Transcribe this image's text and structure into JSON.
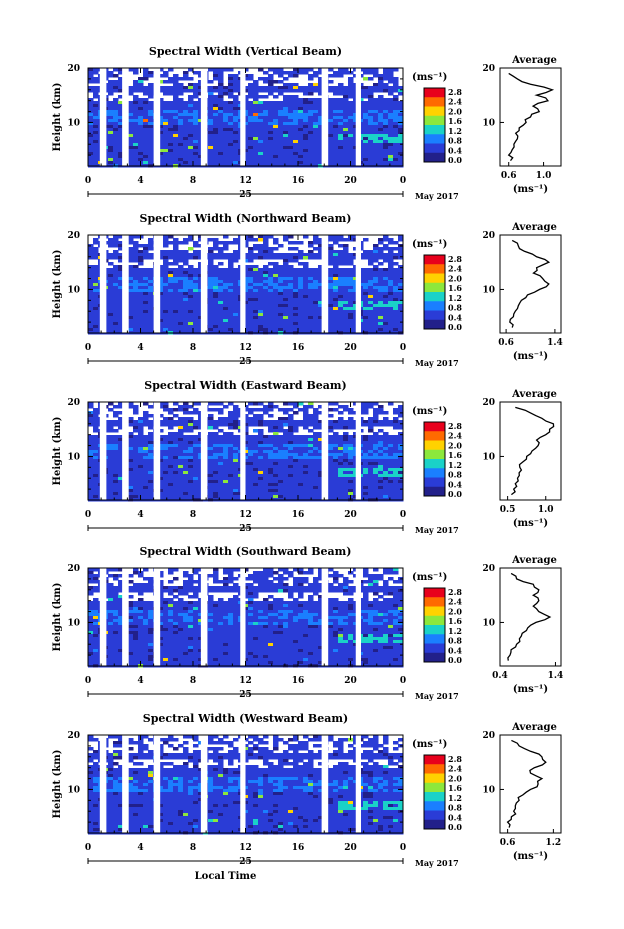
{
  "footer_label": "Local Time",
  "colorbar": {
    "unit_label": "(ms⁻¹)",
    "ticks": [
      "2.8",
      "2.4",
      "2.0",
      "1.6",
      "1.2",
      "0.8",
      "0.4",
      "0.0"
    ],
    "colors": [
      "#e8001c",
      "#ff6a00",
      "#ffd200",
      "#8ce83c",
      "#1ad2c8",
      "#1a7fff",
      "#2a3cd6",
      "#22208a"
    ]
  },
  "panels": [
    {
      "title": "Spectral Width (Vertical Beam)",
      "avg_ticks": [
        "0.6",
        "1.0"
      ],
      "avg_xlim": [
        0.5,
        1.2
      ]
    },
    {
      "title": "Spectral Width (Northward Beam)",
      "avg_ticks": [
        "0.6",
        "1.4"
      ],
      "avg_xlim": [
        0.5,
        1.5
      ]
    },
    {
      "title": "Spectral Width (Eastward Beam)",
      "avg_ticks": [
        "0.5",
        "1.0"
      ],
      "avg_xlim": [
        0.4,
        1.2
      ]
    },
    {
      "title": "Spectral Width (Southward Beam)",
      "avg_ticks": [
        "0.4",
        "1.4"
      ],
      "avg_xlim": [
        0.4,
        1.5
      ]
    },
    {
      "title": "Spectral Width (Westward Beam)",
      "avg_ticks": [
        "0.6",
        "1.2"
      ],
      "avg_xlim": [
        0.5,
        1.3
      ]
    }
  ],
  "common": {
    "ylabel": "Height (km)",
    "y_ticks": [
      "20",
      "10"
    ],
    "x_ticks": [
      "0",
      "4",
      "8",
      "12",
      "16",
      "20",
      "0"
    ],
    "day_label": "25",
    "month_label": "May 2017",
    "avg_title": "Average",
    "avg_xlabel": "(ms⁻¹)",
    "avg_y_ticks": [
      "20",
      "10"
    ]
  },
  "chart_data": {
    "type": "heatmap",
    "xlabel": "Local Time",
    "ylabel": "Height (km)",
    "x_range_hours": [
      0,
      24
    ],
    "ylim_km": [
      2,
      20
    ],
    "value_range_ms": [
      0.0,
      3.0
    ],
    "data_gaps_hours": [
      [
        0.9,
        1.4
      ],
      [
        2.6,
        3.1
      ],
      [
        5.0,
        5.5
      ],
      [
        8.6,
        9.1
      ],
      [
        11.6,
        12.0
      ],
      [
        17.8,
        18.3
      ],
      [
        20.4,
        20.8
      ]
    ],
    "average_profile_heights_km": [
      3,
      4,
      5,
      6,
      7,
      8,
      9,
      10,
      11,
      12,
      13,
      14,
      15,
      16,
      17,
      18,
      19
    ],
    "average_profiles": [
      [
        0.62,
        0.6,
        0.64,
        0.66,
        0.7,
        0.68,
        0.72,
        0.8,
        0.85,
        0.95,
        0.88,
        1.05,
        0.92,
        1.1,
        0.85,
        0.7,
        0.6
      ],
      [
        0.7,
        0.66,
        0.72,
        0.75,
        0.8,
        0.85,
        0.95,
        1.15,
        1.3,
        1.2,
        1.05,
        1.1,
        1.3,
        1.1,
        0.9,
        0.8,
        0.7
      ],
      [
        0.55,
        0.58,
        0.6,
        0.63,
        0.65,
        0.66,
        0.7,
        0.75,
        0.82,
        0.9,
        0.88,
        1.0,
        1.05,
        1.1,
        0.95,
        0.8,
        0.6
      ],
      [
        0.55,
        0.58,
        0.6,
        0.7,
        0.75,
        0.8,
        0.9,
        1.05,
        1.3,
        1.1,
        1.0,
        1.1,
        1.0,
        1.1,
        1.0,
        0.7,
        0.6
      ],
      [
        0.62,
        0.6,
        0.65,
        0.68,
        0.7,
        0.75,
        0.8,
        0.9,
        1.0,
        1.05,
        0.9,
        0.95,
        1.1,
        1.05,
        0.9,
        0.75,
        0.65
      ]
    ]
  }
}
